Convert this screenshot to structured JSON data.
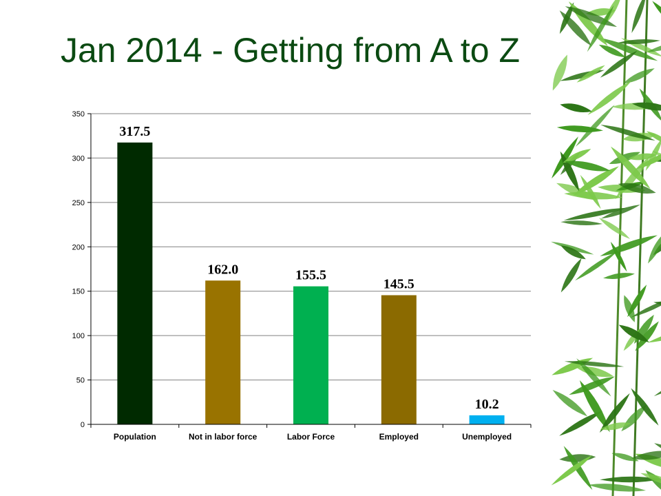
{
  "slide": {
    "title": "Jan 2014 - Getting from A to Z"
  },
  "colors": {
    "title": "#0b4a12",
    "bamboo_leaf": "#3f9a1f",
    "bamboo_leaf_dark": "#2b7414",
    "bamboo_leaf_light": "#7cc94a",
    "gridline": "#808080"
  },
  "decoration": {
    "icon": "bamboo-leaves-icon"
  },
  "chart_data": {
    "type": "bar",
    "title": "",
    "xlabel": "",
    "ylabel": "",
    "ylim": [
      0,
      350
    ],
    "yticks": [
      0,
      50,
      100,
      150,
      200,
      250,
      300,
      350
    ],
    "grid": true,
    "legend": "none",
    "categories": [
      "Population",
      "Not in labor force",
      "Labor Force",
      "Employed",
      "Unemployed"
    ],
    "values": [
      317.5,
      162.0,
      155.5,
      145.5,
      10.2
    ],
    "data_labels": [
      "317.5",
      "162.0",
      "155.5",
      "145.5",
      "10.2"
    ],
    "bar_colors": [
      "#002a00",
      "#997300",
      "#00b050",
      "#8b6a00",
      "#00b0f0"
    ]
  }
}
